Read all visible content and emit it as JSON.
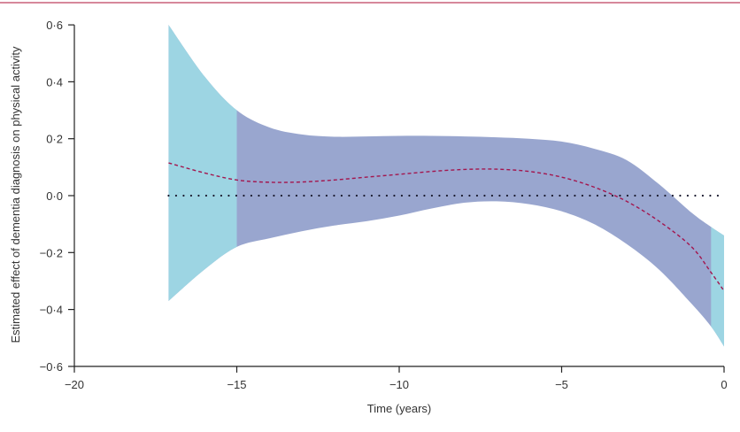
{
  "chart_data": {
    "type": "area",
    "title": "",
    "xlabel": "Time (years)",
    "ylabel": "Estimated effect of dementia diagnosis on physical activity",
    "xlim": [
      -20,
      0
    ],
    "ylim": [
      -0.6,
      0.6
    ],
    "xticks": [
      -20,
      -15,
      -10,
      -5,
      0
    ],
    "xtick_labels": [
      "−20",
      "−15",
      "−10",
      "−5",
      "0"
    ],
    "yticks": [
      0.6,
      0.4,
      0.2,
      0.0,
      -0.2,
      -0.4,
      -0.6
    ],
    "ytick_labels": [
      "0·6",
      "0·4",
      "0·2",
      "0·0",
      "−0·2",
      "−0·4",
      "−0·6"
    ],
    "grid": false,
    "reference_line": {
      "y": 0,
      "style": "dotted",
      "color": "#1a1a2e"
    },
    "x": [
      -17.1,
      -16,
      -15,
      -14,
      -13,
      -12,
      -11,
      -10,
      -9,
      -8,
      -7,
      -6,
      -5,
      -4,
      -3,
      -2,
      -1,
      -0.4,
      0
    ],
    "estimate": [
      0.115,
      0.08,
      0.055,
      0.047,
      0.048,
      0.055,
      0.065,
      0.075,
      0.085,
      0.092,
      0.093,
      0.085,
      0.065,
      0.03,
      -0.02,
      -0.09,
      -0.18,
      -0.27,
      -0.335
    ],
    "upper": [
      0.6,
      0.42,
      0.3,
      0.24,
      0.215,
      0.207,
      0.208,
      0.21,
      0.21,
      0.208,
      0.205,
      0.2,
      0.19,
      0.165,
      0.125,
      0.04,
      -0.06,
      -0.11,
      -0.14
    ],
    "lower": [
      -0.37,
      -0.26,
      -0.18,
      -0.15,
      -0.125,
      -0.105,
      -0.09,
      -0.07,
      -0.045,
      -0.025,
      -0.02,
      -0.03,
      -0.055,
      -0.1,
      -0.17,
      -0.26,
      -0.38,
      -0.46,
      -0.53
    ],
    "highlight_ranges": [
      [
        -17.1,
        -15
      ],
      [
        -0.4,
        0
      ]
    ],
    "colors": {
      "band": "#99a6cf",
      "band_highlight": "#9dd5e3",
      "estimate_line": "#a3164e",
      "axis": "#222222",
      "top_rule": "#c8607a"
    }
  }
}
